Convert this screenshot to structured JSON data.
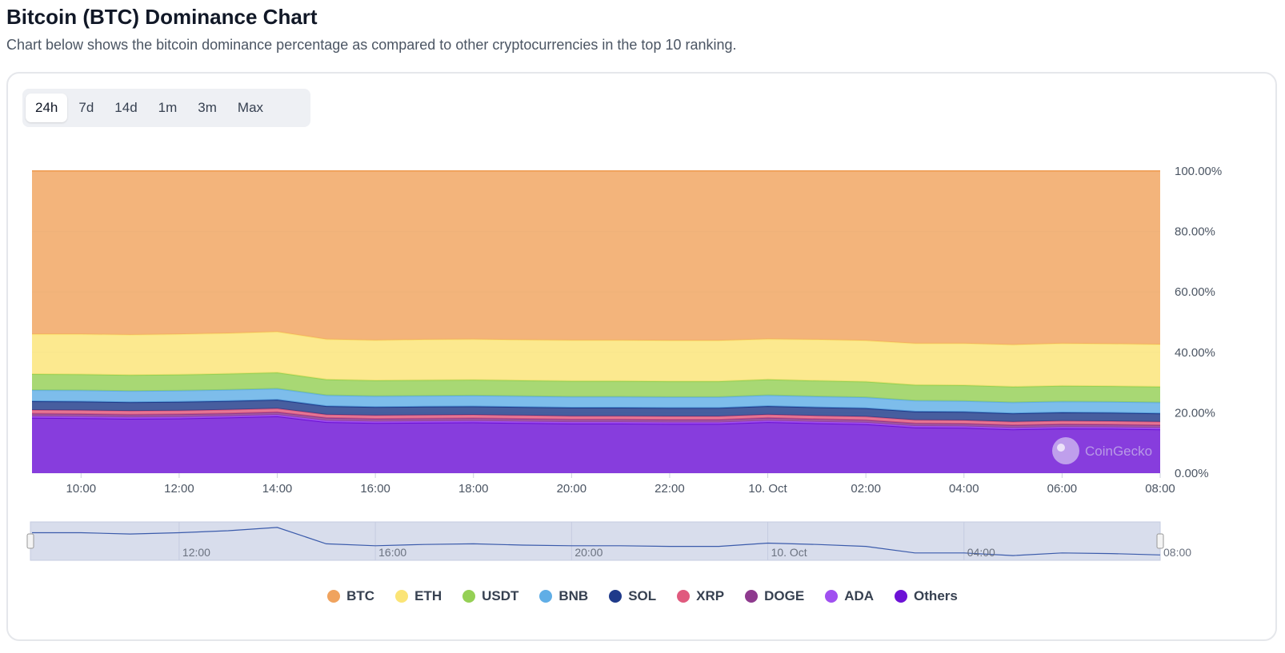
{
  "header": {
    "title": "Bitcoin (BTC) Dominance Chart",
    "subtitle": "Chart below shows the bitcoin dominance percentage as compared to other cryptocurrencies in the top 10 ranking."
  },
  "range_tabs": [
    "24h",
    "7d",
    "14d",
    "1m",
    "3m",
    "Max"
  ],
  "active_range": "24h",
  "watermark": "CoinGecko",
  "navigator": {
    "labels": [
      "12:00",
      "16:00",
      "20:00",
      "10. Oct",
      "04:00",
      "08:00"
    ]
  },
  "chart_data": {
    "type": "area",
    "stacking": "percent",
    "x": [
      "09:00",
      "10:00",
      "11:00",
      "12:00",
      "13:00",
      "14:00",
      "15:00",
      "16:00",
      "17:00",
      "18:00",
      "19:00",
      "20:00",
      "21:00",
      "22:00",
      "23:00",
      "00:00",
      "01:00",
      "02:00",
      "03:00",
      "04:00",
      "05:00",
      "06:00",
      "07:00",
      "08:00"
    ],
    "x_tick_labels": [
      "10:00",
      "12:00",
      "14:00",
      "16:00",
      "18:00",
      "20:00",
      "22:00",
      "10. Oct",
      "02:00",
      "04:00",
      "06:00",
      "08:00"
    ],
    "y_tick_labels": [
      "0.00%",
      "20.00%",
      "40.00%",
      "60.00%",
      "80.00%",
      "100.00%"
    ],
    "ylim": [
      0,
      100
    ],
    "y_unit": "%",
    "grid": true,
    "legend_position": "bottom",
    "colors": {
      "BTC": "#f0a35e",
      "ETH": "#fbe476",
      "USDT": "#95d055",
      "BNB": "#60aee6",
      "SOL": "#1f3a8a",
      "XRP": "#e05a7e",
      "DOGE": "#8e3a8e",
      "ADA": "#a050f0",
      "Others": "#6d12d6"
    },
    "series": [
      {
        "name": "Others",
        "values": [
          18.3,
          18.2,
          18.0,
          18.1,
          18.4,
          18.8,
          16.9,
          16.6,
          16.7,
          16.8,
          16.6,
          16.4,
          16.4,
          16.3,
          16.3,
          16.9,
          16.5,
          16.2,
          15.1,
          15.0,
          14.5,
          14.8,
          14.7,
          14.5
        ]
      },
      {
        "name": "ADA",
        "values": [
          0.5,
          0.5,
          0.5,
          0.5,
          0.5,
          0.5,
          0.5,
          0.5,
          0.5,
          0.5,
          0.5,
          0.5,
          0.5,
          0.5,
          0.5,
          0.5,
          0.5,
          0.5,
          0.5,
          0.5,
          0.5,
          0.5,
          0.5,
          0.5
        ]
      },
      {
        "name": "DOGE",
        "values": [
          0.9,
          0.9,
          0.9,
          0.9,
          0.9,
          0.9,
          0.9,
          0.9,
          0.9,
          0.9,
          0.9,
          0.9,
          0.9,
          0.9,
          0.9,
          0.9,
          0.9,
          0.9,
          0.9,
          0.9,
          0.9,
          0.9,
          0.9,
          0.9
        ]
      },
      {
        "name": "XRP",
        "values": [
          1.2,
          1.2,
          1.2,
          1.2,
          1.2,
          1.2,
          1.1,
          1.1,
          1.1,
          1.1,
          1.1,
          1.1,
          1.1,
          1.1,
          1.1,
          1.1,
          1.1,
          1.1,
          1.1,
          1.1,
          1.1,
          1.1,
          1.1,
          1.1
        ]
      },
      {
        "name": "SOL",
        "values": [
          2.9,
          2.9,
          2.9,
          2.9,
          2.9,
          2.9,
          2.8,
          2.8,
          2.8,
          2.8,
          2.8,
          2.8,
          2.8,
          2.8,
          2.8,
          2.8,
          2.8,
          2.8,
          2.8,
          2.8,
          2.8,
          2.8,
          2.8,
          2.8
        ]
      },
      {
        "name": "BNB",
        "values": [
          3.7,
          3.7,
          3.7,
          3.7,
          3.7,
          3.7,
          3.6,
          3.6,
          3.6,
          3.6,
          3.6,
          3.6,
          3.6,
          3.6,
          3.6,
          3.6,
          3.6,
          3.6,
          3.6,
          3.6,
          3.6,
          3.6,
          3.6,
          3.6
        ]
      },
      {
        "name": "USDT",
        "values": [
          5.3,
          5.3,
          5.3,
          5.3,
          5.3,
          5.3,
          5.2,
          5.2,
          5.2,
          5.2,
          5.2,
          5.2,
          5.2,
          5.2,
          5.2,
          5.2,
          5.2,
          5.2,
          5.2,
          5.2,
          5.2,
          5.2,
          5.2,
          5.2
        ]
      },
      {
        "name": "ETH",
        "values": [
          13.2,
          13.3,
          13.3,
          13.4,
          13.4,
          13.5,
          13.3,
          13.3,
          13.4,
          13.4,
          13.4,
          13.5,
          13.5,
          13.5,
          13.5,
          13.4,
          13.6,
          13.6,
          13.7,
          13.8,
          13.9,
          14.0,
          14.0,
          14.0
        ]
      },
      {
        "name": "BTC",
        "values": [
          54.0,
          54.0,
          54.2,
          54.0,
          53.7,
          53.2,
          55.7,
          56.0,
          55.8,
          55.7,
          55.9,
          56.0,
          56.0,
          56.1,
          56.1,
          55.6,
          55.8,
          56.1,
          57.1,
          57.1,
          57.5,
          57.1,
          57.2,
          57.4
        ]
      }
    ],
    "navigator_values": [
      54.0,
      54.0,
      54.2,
      54.0,
      53.7,
      53.2,
      55.7,
      56.0,
      55.8,
      55.7,
      55.9,
      56.0,
      56.0,
      56.1,
      56.1,
      55.6,
      55.8,
      56.1,
      57.1,
      57.1,
      57.5,
      57.1,
      57.2,
      57.4
    ]
  }
}
